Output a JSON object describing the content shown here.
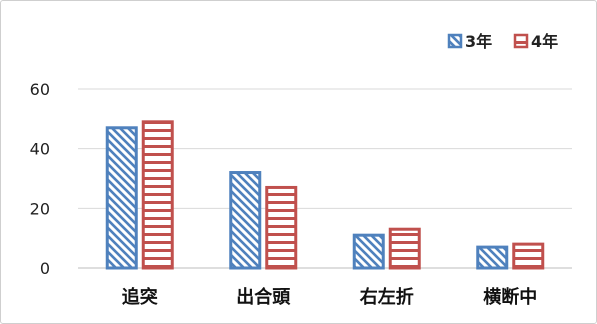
{
  "chart_data": {
    "type": "bar",
    "title": "",
    "xlabel": "",
    "ylabel": "",
    "categories": [
      "追突",
      "出合頭",
      "右左折",
      "横断中"
    ],
    "series": [
      {
        "name": "3年",
        "values": [
          47,
          32,
          11,
          7
        ],
        "color": "#4f81bd",
        "pattern": "diagonal-stripes"
      },
      {
        "name": "4年",
        "values": [
          49,
          27,
          13,
          8
        ],
        "color": "#c0504d",
        "pattern": "horizontal-stripes"
      }
    ],
    "ylim": [
      0,
      60
    ],
    "yticks": [
      0,
      20,
      40,
      60
    ],
    "ytick_labels": [
      "0",
      "20",
      "40",
      "60"
    ],
    "grid": true,
    "legend_position": "top-right"
  }
}
